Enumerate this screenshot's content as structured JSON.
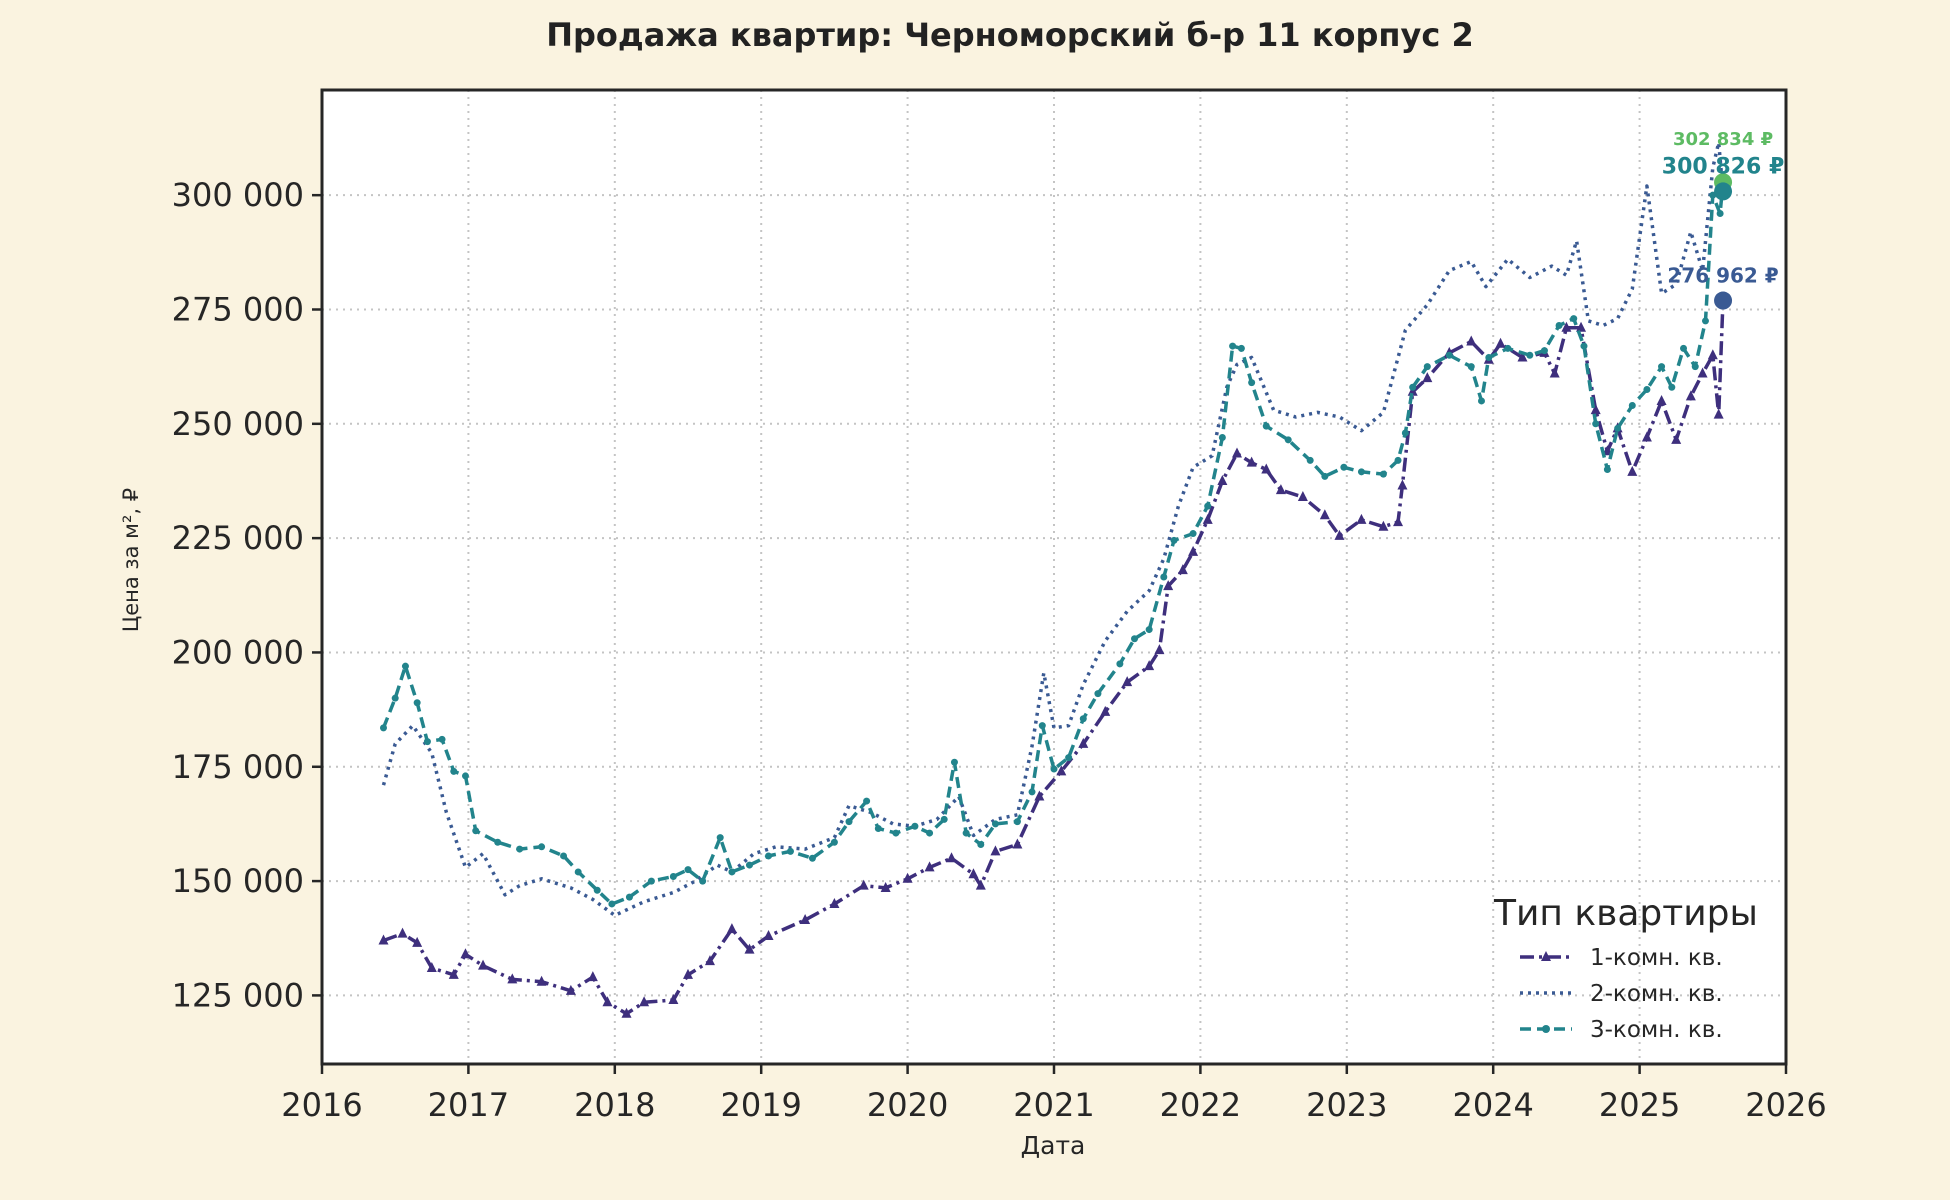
{
  "chart_data": {
    "type": "line",
    "title": "Продажа квартир: Черноморский б-р 11 корпус 2",
    "xlabel": "Дата",
    "ylabel": "Цена за м², ₽",
    "xlim": [
      2016.0,
      2026.0
    ],
    "ylim": [
      110000,
      323000
    ],
    "x_ticks": [
      2016,
      2017,
      2018,
      2019,
      2020,
      2021,
      2022,
      2023,
      2024,
      2025,
      2026
    ],
    "y_ticks": [
      125000,
      150000,
      175000,
      200000,
      225000,
      250000,
      275000,
      300000
    ],
    "x_tick_labels": [
      "2016",
      "2017",
      "2018",
      "2019",
      "2020",
      "2021",
      "2022",
      "2023",
      "2024",
      "2025",
      "2026"
    ],
    "y_tick_labels": [
      "125 000",
      "150 000",
      "175 000",
      "200 000",
      "225 000",
      "250 000",
      "275 000",
      "300 000"
    ],
    "grid": true,
    "legend": {
      "title": "Тип квартиры",
      "position": "bottom-right"
    },
    "series": [
      {
        "name": "1-комн. кв.",
        "color": "#3E2F7D",
        "style": "dashdot",
        "marker": "triangle",
        "points": [
          [
            2016.42,
            137000
          ],
          [
            2016.55,
            138500
          ],
          [
            2016.65,
            136500
          ],
          [
            2016.75,
            131000
          ],
          [
            2016.9,
            129500
          ],
          [
            2016.98,
            134000
          ],
          [
            2017.1,
            131500
          ],
          [
            2017.3,
            128500
          ],
          [
            2017.5,
            128000
          ],
          [
            2017.7,
            126000
          ],
          [
            2017.85,
            129000
          ],
          [
            2017.95,
            123500
          ],
          [
            2018.08,
            121000
          ],
          [
            2018.2,
            123500
          ],
          [
            2018.4,
            124000
          ],
          [
            2018.5,
            129500
          ],
          [
            2018.65,
            132500
          ],
          [
            2018.8,
            139500
          ],
          [
            2018.92,
            135000
          ],
          [
            2019.05,
            138000
          ],
          [
            2019.3,
            141500
          ],
          [
            2019.5,
            145000
          ],
          [
            2019.7,
            149000
          ],
          [
            2019.85,
            148500
          ],
          [
            2020.0,
            150500
          ],
          [
            2020.15,
            153000
          ],
          [
            2020.3,
            155000
          ],
          [
            2020.45,
            151500
          ],
          [
            2020.5,
            149000
          ],
          [
            2020.6,
            156500
          ],
          [
            2020.75,
            158000
          ],
          [
            2020.9,
            168500
          ],
          [
            2021.05,
            174000
          ],
          [
            2021.2,
            180000
          ],
          [
            2021.35,
            187000
          ],
          [
            2021.5,
            193500
          ],
          [
            2021.65,
            197000
          ],
          [
            2021.72,
            200500
          ],
          [
            2021.78,
            214500
          ],
          [
            2021.88,
            218000
          ],
          [
            2021.95,
            222000
          ],
          [
            2022.05,
            229000
          ],
          [
            2022.15,
            237500
          ],
          [
            2022.25,
            243500
          ],
          [
            2022.35,
            241500
          ],
          [
            2022.45,
            240000
          ],
          [
            2022.55,
            235500
          ],
          [
            2022.7,
            234000
          ],
          [
            2022.85,
            230000
          ],
          [
            2022.95,
            225500
          ],
          [
            2023.1,
            229000
          ],
          [
            2023.25,
            227500
          ],
          [
            2023.35,
            228500
          ],
          [
            2023.38,
            236500
          ],
          [
            2023.45,
            257000
          ],
          [
            2023.55,
            260000
          ],
          [
            2023.7,
            265500
          ],
          [
            2023.85,
            268000
          ],
          [
            2023.97,
            264000
          ],
          [
            2024.05,
            267500
          ],
          [
            2024.2,
            264500
          ],
          [
            2024.35,
            265500
          ],
          [
            2024.42,
            261000
          ],
          [
            2024.5,
            271000
          ],
          [
            2024.6,
            271000
          ],
          [
            2024.7,
            253000
          ],
          [
            2024.78,
            244000
          ],
          [
            2024.85,
            249000
          ],
          [
            2024.95,
            239500
          ],
          [
            2025.05,
            247000
          ],
          [
            2025.15,
            255000
          ],
          [
            2025.25,
            246500
          ],
          [
            2025.35,
            256000
          ],
          [
            2025.43,
            261000
          ],
          [
            2025.5,
            265000
          ],
          [
            2025.54,
            252000
          ],
          [
            2025.57,
            276962
          ]
        ]
      },
      {
        "name": "2-комн. кв.",
        "color": "#3A5A93",
        "style": "dotted",
        "marker": "none",
        "points": [
          [
            2016.42,
            171000
          ],
          [
            2016.5,
            180000
          ],
          [
            2016.62,
            184000
          ],
          [
            2016.75,
            178000
          ],
          [
            2016.85,
            165000
          ],
          [
            2016.98,
            153000
          ],
          [
            2017.1,
            156000
          ],
          [
            2017.25,
            147000
          ],
          [
            2017.35,
            149000
          ],
          [
            2017.5,
            150500
          ],
          [
            2017.7,
            148500
          ],
          [
            2017.85,
            146000
          ],
          [
            2018.0,
            142500
          ],
          [
            2018.2,
            145500
          ],
          [
            2018.4,
            147500
          ],
          [
            2018.55,
            150000
          ],
          [
            2018.7,
            153500
          ],
          [
            2018.8,
            152000
          ],
          [
            2018.95,
            156000
          ],
          [
            2019.1,
            157500
          ],
          [
            2019.3,
            157000
          ],
          [
            2019.5,
            159500
          ],
          [
            2019.6,
            166500
          ],
          [
            2019.75,
            165000
          ],
          [
            2019.9,
            162500
          ],
          [
            2020.05,
            162000
          ],
          [
            2020.2,
            163500
          ],
          [
            2020.35,
            168500
          ],
          [
            2020.45,
            160000
          ],
          [
            2020.6,
            163500
          ],
          [
            2020.75,
            164500
          ],
          [
            2020.85,
            179500
          ],
          [
            2020.93,
            195500
          ],
          [
            2021.0,
            183500
          ],
          [
            2021.1,
            184000
          ],
          [
            2021.2,
            193000
          ],
          [
            2021.35,
            202500
          ],
          [
            2021.5,
            209000
          ],
          [
            2021.65,
            213500
          ],
          [
            2021.75,
            220500
          ],
          [
            2021.85,
            232000
          ],
          [
            2021.95,
            240500
          ],
          [
            2022.08,
            243000
          ],
          [
            2022.18,
            258000
          ],
          [
            2022.25,
            263000
          ],
          [
            2022.35,
            264500
          ],
          [
            2022.5,
            253000
          ],
          [
            2022.65,
            251500
          ],
          [
            2022.8,
            252500
          ],
          [
            2022.95,
            251500
          ],
          [
            2023.1,
            248500
          ],
          [
            2023.25,
            252500
          ],
          [
            2023.4,
            270500
          ],
          [
            2023.55,
            276000
          ],
          [
            2023.7,
            283500
          ],
          [
            2023.85,
            285500
          ],
          [
            2023.95,
            280000
          ],
          [
            2024.1,
            286000
          ],
          [
            2024.25,
            282000
          ],
          [
            2024.4,
            284500
          ],
          [
            2024.5,
            282500
          ],
          [
            2024.57,
            290000
          ],
          [
            2024.65,
            272500
          ],
          [
            2024.75,
            271500
          ],
          [
            2024.85,
            273000
          ],
          [
            2024.95,
            279500
          ],
          [
            2025.05,
            302000
          ],
          [
            2025.15,
            278500
          ],
          [
            2025.25,
            280500
          ],
          [
            2025.35,
            292000
          ],
          [
            2025.43,
            283500
          ],
          [
            2025.5,
            306000
          ],
          [
            2025.54,
            311500
          ],
          [
            2025.57,
            300826
          ]
        ]
      },
      {
        "name": "3-комн. кв.",
        "color": "#22848C",
        "style": "dashed",
        "marker": "circle",
        "points": [
          [
            2016.42,
            183500
          ],
          [
            2016.5,
            190000
          ],
          [
            2016.57,
            197000
          ],
          [
            2016.65,
            189000
          ],
          [
            2016.72,
            180500
          ],
          [
            2016.82,
            181000
          ],
          [
            2016.9,
            174000
          ],
          [
            2016.98,
            173000
          ],
          [
            2017.05,
            161000
          ],
          [
            2017.2,
            158500
          ],
          [
            2017.35,
            157000
          ],
          [
            2017.5,
            157500
          ],
          [
            2017.65,
            155500
          ],
          [
            2017.75,
            152000
          ],
          [
            2017.88,
            148000
          ],
          [
            2017.98,
            145000
          ],
          [
            2018.1,
            146500
          ],
          [
            2018.25,
            150000
          ],
          [
            2018.4,
            151000
          ],
          [
            2018.5,
            152500
          ],
          [
            2018.6,
            150000
          ],
          [
            2018.72,
            159500
          ],
          [
            2018.8,
            152000
          ],
          [
            2018.92,
            153500
          ],
          [
            2019.05,
            155500
          ],
          [
            2019.2,
            156500
          ],
          [
            2019.35,
            155000
          ],
          [
            2019.5,
            158500
          ],
          [
            2019.6,
            163000
          ],
          [
            2019.72,
            167500
          ],
          [
            2019.8,
            161500
          ],
          [
            2019.92,
            160500
          ],
          [
            2020.05,
            162000
          ],
          [
            2020.15,
            160500
          ],
          [
            2020.25,
            163500
          ],
          [
            2020.32,
            176000
          ],
          [
            2020.4,
            160500
          ],
          [
            2020.5,
            158000
          ],
          [
            2020.6,
            162500
          ],
          [
            2020.75,
            163000
          ],
          [
            2020.85,
            169500
          ],
          [
            2020.92,
            184000
          ],
          [
            2021.0,
            174500
          ],
          [
            2021.1,
            177000
          ],
          [
            2021.2,
            185500
          ],
          [
            2021.3,
            191000
          ],
          [
            2021.45,
            197500
          ],
          [
            2021.55,
            203000
          ],
          [
            2021.65,
            205000
          ],
          [
            2021.75,
            216500
          ],
          [
            2021.82,
            224500
          ],
          [
            2021.95,
            226000
          ],
          [
            2022.05,
            232000
          ],
          [
            2022.15,
            247000
          ],
          [
            2022.22,
            267000
          ],
          [
            2022.28,
            266500
          ],
          [
            2022.35,
            259000
          ],
          [
            2022.45,
            249500
          ],
          [
            2022.6,
            246500
          ],
          [
            2022.75,
            242000
          ],
          [
            2022.85,
            238500
          ],
          [
            2022.98,
            240500
          ],
          [
            2023.1,
            239500
          ],
          [
            2023.25,
            239000
          ],
          [
            2023.35,
            242000
          ],
          [
            2023.4,
            248000
          ],
          [
            2023.45,
            258000
          ],
          [
            2023.55,
            262500
          ],
          [
            2023.7,
            265000
          ],
          [
            2023.85,
            262500
          ],
          [
            2023.92,
            255000
          ],
          [
            2023.97,
            264500
          ],
          [
            2024.1,
            266500
          ],
          [
            2024.25,
            265000
          ],
          [
            2024.35,
            266000
          ],
          [
            2024.45,
            271500
          ],
          [
            2024.55,
            273000
          ],
          [
            2024.62,
            267000
          ],
          [
            2024.7,
            250000
          ],
          [
            2024.78,
            240000
          ],
          [
            2024.85,
            249000
          ],
          [
            2024.95,
            254000
          ],
          [
            2025.05,
            257500
          ],
          [
            2025.15,
            262500
          ],
          [
            2025.22,
            258000
          ],
          [
            2025.3,
            266500
          ],
          [
            2025.38,
            262500
          ],
          [
            2025.45,
            272500
          ],
          [
            2025.5,
            300000
          ],
          [
            2025.55,
            296000
          ],
          [
            2025.57,
            302834
          ]
        ]
      }
    ],
    "annotations": [
      {
        "text": "302 834 ₽",
        "x": 2025.57,
        "y": 302834,
        "color": "#5DBB63"
      },
      {
        "text": "300 826 ₽",
        "x": 2025.57,
        "y": 300826,
        "color": "#22848C"
      },
      {
        "text": "276 962 ₽",
        "x": 2025.57,
        "y": 276962,
        "color": "#3A5A93"
      }
    ]
  }
}
